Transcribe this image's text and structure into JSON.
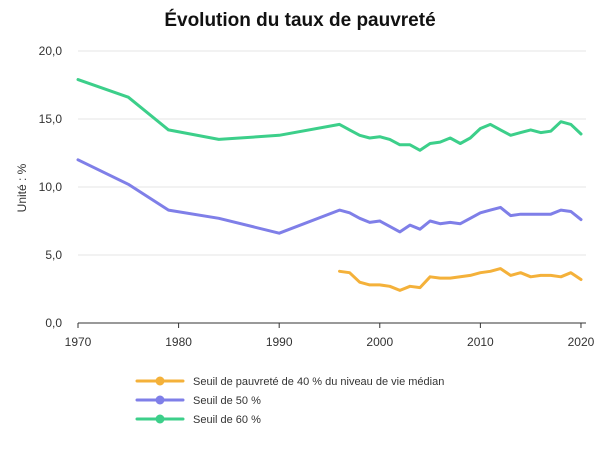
{
  "chart_data": {
    "type": "line",
    "title": "Évolution du taux de pauvreté",
    "ylabel": "Unité : %",
    "xlabel": "",
    "xlim": [
      1970,
      2020.5
    ],
    "ylim": [
      0,
      20
    ],
    "x_ticks": [
      1970,
      1980,
      1990,
      2000,
      2010,
      2020
    ],
    "y_ticks": [
      0,
      5,
      10,
      15,
      20
    ],
    "y_tick_labels": [
      "0,0",
      "5,0",
      "10,0",
      "15,0",
      "20,0"
    ],
    "grid": "horizontal",
    "legend_position": "bottom",
    "series": [
      {
        "name": "Seuil de pauvreté de 40 % du niveau de vie médian",
        "color": "#f4b13a",
        "x": [
          1996,
          1997,
          1998,
          1999,
          2000,
          2001,
          2002,
          2003,
          2004,
          2005,
          2006,
          2007,
          2008,
          2009,
          2010,
          2011,
          2012,
          2013,
          2014,
          2015,
          2016,
          2017,
          2018,
          2019,
          2020
        ],
        "y": [
          3.8,
          3.7,
          3.0,
          2.8,
          2.8,
          2.7,
          2.4,
          2.7,
          2.6,
          3.4,
          3.3,
          3.3,
          3.4,
          3.5,
          3.7,
          3.8,
          4.0,
          3.5,
          3.7,
          3.4,
          3.5,
          3.5,
          3.4,
          3.7,
          3.2
        ]
      },
      {
        "name": "Seuil de 50 %",
        "color": "#7f7fe8",
        "x": [
          1970,
          1975,
          1979,
          1984,
          1990,
          1996,
          1997,
          1998,
          1999,
          2000,
          2001,
          2002,
          2003,
          2004,
          2005,
          2006,
          2007,
          2008,
          2009,
          2010,
          2011,
          2012,
          2013,
          2014,
          2015,
          2016,
          2017,
          2018,
          2019,
          2020
        ],
        "y": [
          12.0,
          10.2,
          8.3,
          7.7,
          6.6,
          8.3,
          8.1,
          7.7,
          7.4,
          7.5,
          7.1,
          6.7,
          7.2,
          6.9,
          7.5,
          7.3,
          7.4,
          7.3,
          7.7,
          8.1,
          8.3,
          8.5,
          7.9,
          8.0,
          8.0,
          8.0,
          8.0,
          8.3,
          8.2,
          7.6
        ]
      },
      {
        "name": "Seuil de 60 %",
        "color": "#3ccf8a",
        "x": [
          1970,
          1975,
          1979,
          1984,
          1990,
          1996,
          1997,
          1998,
          1999,
          2000,
          2001,
          2002,
          2003,
          2004,
          2005,
          2006,
          2007,
          2008,
          2009,
          2010,
          2011,
          2012,
          2013,
          2014,
          2015,
          2016,
          2017,
          2018,
          2019,
          2020
        ],
        "y": [
          17.9,
          16.6,
          14.2,
          13.5,
          13.8,
          14.6,
          14.2,
          13.8,
          13.6,
          13.7,
          13.5,
          13.1,
          13.1,
          12.7,
          13.2,
          13.3,
          13.6,
          13.2,
          13.6,
          14.3,
          14.6,
          14.2,
          13.8,
          14.0,
          14.2,
          14.0,
          14.1,
          14.8,
          14.6,
          13.9
        ]
      }
    ]
  }
}
